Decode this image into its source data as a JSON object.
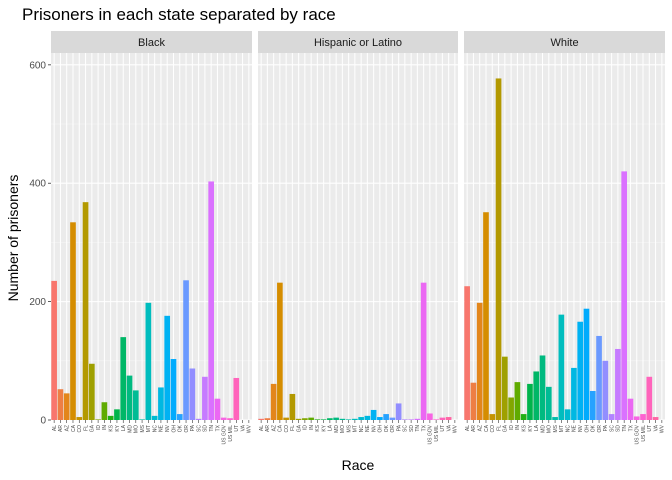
{
  "chart_data": {
    "type": "bar",
    "title": "Prisoners in each state separated by race",
    "xlabel": "Race",
    "ylabel": "Number of prisoners",
    "ylim": [
      0,
      620
    ],
    "yticks": [
      0,
      200,
      400,
      600
    ],
    "grid": true,
    "legend": "none",
    "categories": [
      "AL",
      "AR",
      "AZ",
      "CA",
      "CO",
      "FL",
      "GA",
      "ID",
      "IN",
      "KS",
      "KY",
      "LA",
      "MD",
      "MO",
      "MS",
      "MT",
      "NC",
      "NE",
      "NV",
      "OH",
      "OK",
      "OR",
      "PA",
      "SC",
      "SD",
      "TN",
      "TX",
      "US GOV",
      "US MIL",
      "UT",
      "VA",
      "WV"
    ],
    "colors": [
      "#F8766D",
      "#EE7E44",
      "#E3861B",
      "#D58D00",
      "#C49300",
      "#B39900",
      "#9FA000",
      "#82A600",
      "#60AB00",
      "#22B014",
      "#00B44B",
      "#00B767",
      "#00BA80",
      "#00BC95",
      "#00BDAA",
      "#00BDBE",
      "#00BBD0",
      "#00B8E2",
      "#00B2F3",
      "#00ABFD",
      "#26A2FF",
      "#6A99FF",
      "#928EFF",
      "#B183FF",
      "#C67BFF",
      "#DA71FF",
      "#EB68F3",
      "#F765E3",
      "#FD62D0",
      "#FF64BB",
      "#FF67A4",
      "#FF6C8D"
    ],
    "series": [
      {
        "name": "Black",
        "values": [
          235,
          52,
          45,
          334,
          5,
          368,
          95,
          1,
          30,
          7,
          18,
          140,
          75,
          50,
          1,
          198,
          7,
          55,
          176,
          103,
          10,
          236,
          87,
          2,
          73,
          403,
          36,
          4,
          3,
          71,
          0,
          0
        ]
      },
      {
        "name": "Hispanic or Latino",
        "values": [
          2,
          3,
          61,
          232,
          4,
          44,
          2,
          3,
          4,
          1,
          1,
          3,
          4,
          2,
          1,
          2,
          5,
          7,
          17,
          5,
          10,
          4,
          28,
          1,
          1,
          2,
          232,
          11,
          1,
          4,
          5,
          0
        ]
      },
      {
        "name": "White",
        "values": [
          226,
          63,
          198,
          351,
          10,
          577,
          107,
          38,
          64,
          10,
          61,
          82,
          109,
          56,
          5,
          178,
          18,
          88,
          166,
          188,
          49,
          142,
          100,
          10,
          120,
          420,
          36,
          6,
          10,
          73,
          5,
          0
        ]
      }
    ]
  }
}
